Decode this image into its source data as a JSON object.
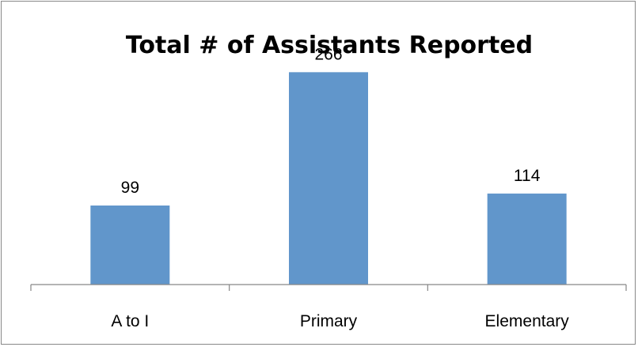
{
  "chart_data": {
    "type": "bar",
    "title": "Total # of Assistants Reported",
    "categories": [
      "A to I",
      "Primary",
      "Elementary"
    ],
    "values": [
      99,
      266,
      114
    ],
    "data_labels": [
      "99",
      "266",
      "114"
    ],
    "xlabel": "",
    "ylabel": "",
    "ylim": [
      0,
      300
    ],
    "grid": false,
    "legend": "none",
    "bar_color": "#6196CB"
  }
}
